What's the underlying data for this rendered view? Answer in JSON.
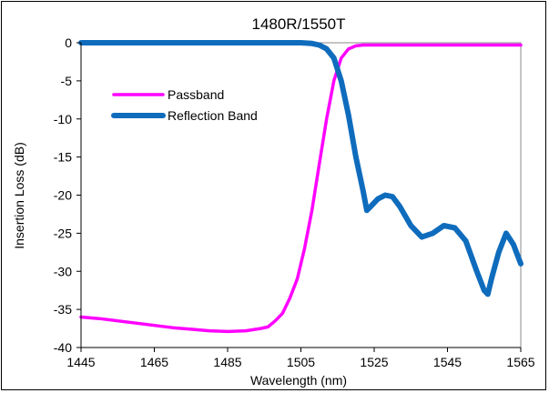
{
  "chart_data": {
    "type": "line",
    "title": "1480R/1550T",
    "xlabel": "Wavelength (nm)",
    "ylabel": "Insertion Loss (dB)",
    "xlim": [
      1445,
      1565
    ],
    "ylim": [
      -40,
      0
    ],
    "xticks": [
      1445,
      1465,
      1485,
      1505,
      1525,
      1545,
      1565
    ],
    "yticks": [
      0,
      -5,
      -10,
      -15,
      -20,
      -25,
      -30,
      -35,
      -40
    ],
    "grid": false,
    "legend": "top-left",
    "series": [
      {
        "name": "Passband",
        "color": "#ff00ff",
        "x": [
          1445,
          1450,
          1455,
          1460,
          1465,
          1470,
          1475,
          1480,
          1485,
          1490,
          1494,
          1496,
          1498,
          1500,
          1502,
          1504,
          1506,
          1508,
          1510,
          1512,
          1514,
          1516,
          1518,
          1520,
          1522,
          1525,
          1530,
          1545,
          1565
        ],
        "y": [
          -36,
          -36.2,
          -36.5,
          -36.8,
          -37.1,
          -37.4,
          -37.6,
          -37.8,
          -37.9,
          -37.8,
          -37.5,
          -37.3,
          -36.5,
          -35.5,
          -33.5,
          -31,
          -27,
          -22,
          -16,
          -10,
          -5,
          -2,
          -0.8,
          -0.4,
          -0.3,
          -0.3,
          -0.3,
          -0.3,
          -0.3
        ]
      },
      {
        "name": "Reflection Band",
        "color": "#0f6cbd",
        "x": [
          1445,
          1490,
          1500,
          1505,
          1508,
          1510,
          1512,
          1514,
          1516,
          1518,
          1520,
          1522,
          1523,
          1524,
          1526,
          1528,
          1530,
          1532,
          1535,
          1538,
          1541,
          1544,
          1547,
          1550,
          1553,
          1555,
          1556,
          1557,
          1559,
          1561,
          1563,
          1565
        ],
        "y": [
          0,
          0,
          0,
          0,
          -0.1,
          -0.3,
          -0.8,
          -2,
          -5,
          -9.5,
          -15,
          -19.5,
          -22,
          -21.5,
          -20.5,
          -20,
          -20.2,
          -21.5,
          -24,
          -25.5,
          -25,
          -24,
          -24.3,
          -26,
          -30,
          -32.5,
          -33,
          -31,
          -27.5,
          -25,
          -26.5,
          -29
        ]
      }
    ]
  }
}
